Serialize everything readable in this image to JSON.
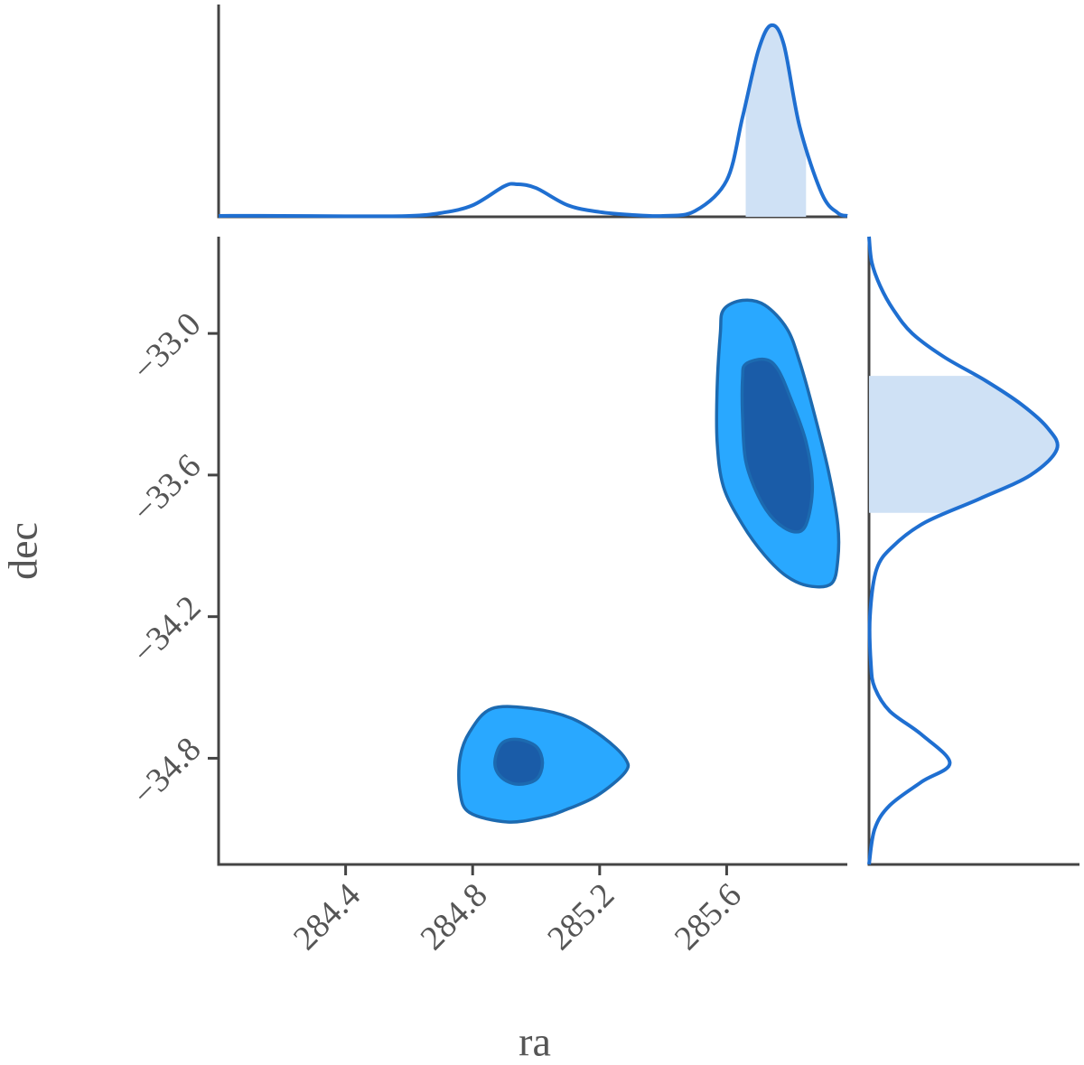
{
  "chart_data": {
    "type": "corner",
    "xlabel": "ra",
    "ylabel": "dec",
    "xlim": [
      284.0,
      285.98
    ],
    "xticks": [
      284.4,
      284.8,
      285.2,
      285.6
    ],
    "ylim": [
      -35.25,
      -32.59
    ],
    "yticks": [
      {
        "value": -33.0,
        "label": "−33.0"
      },
      {
        "value": -33.6,
        "label": "−33.6"
      },
      {
        "value": -34.2,
        "label": "−34.2"
      },
      {
        "value": -34.8,
        "label": "−34.8"
      }
    ],
    "line_color": "#1f6fd1",
    "band_color": "#cfe1f5",
    "contours": [
      {
        "color": "#29a8ff",
        "x": [
          285.59,
          285.65,
          285.72,
          285.79,
          285.83,
          285.87,
          285.92,
          285.95,
          285.95,
          285.93,
          285.86,
          285.79,
          285.72,
          285.65,
          285.59,
          285.57,
          285.57,
          285.58
        ],
        "y": [
          -32.9,
          -32.86,
          -32.88,
          -32.98,
          -33.12,
          -33.31,
          -33.58,
          -33.81,
          -33.96,
          -34.06,
          -34.07,
          -34.03,
          -33.94,
          -33.81,
          -33.65,
          -33.46,
          -33.23,
          -33.0
        ]
      },
      {
        "color": "#1a5ca8",
        "x": [
          285.66,
          285.72,
          285.76,
          285.8,
          285.85,
          285.87,
          285.85,
          285.81,
          285.75,
          285.7,
          285.66,
          285.65,
          285.65
        ],
        "y": [
          -33.13,
          -33.11,
          -33.15,
          -33.27,
          -33.46,
          -33.65,
          -33.81,
          -33.84,
          -33.79,
          -33.69,
          -33.54,
          -33.35,
          -33.19
        ]
      },
      {
        "color": "#29a8ff",
        "x": [
          284.86,
          284.99,
          285.11,
          285.21,
          285.28,
          285.28,
          285.19,
          285.09,
          285.02,
          284.91,
          284.79,
          284.76,
          284.76,
          284.79
        ],
        "y": [
          -34.59,
          -34.59,
          -34.63,
          -34.71,
          -34.8,
          -34.86,
          -34.96,
          -35.02,
          -35.05,
          -35.07,
          -35.03,
          -34.94,
          -34.8,
          -34.69
        ]
      },
      {
        "color": "#1a5ca8",
        "x": [
          284.94,
          285.0,
          285.02,
          285.0,
          284.94,
          284.89,
          284.87,
          284.89
        ],
        "y": [
          -34.72,
          -34.75,
          -34.82,
          -34.89,
          -34.91,
          -34.88,
          -34.82,
          -34.74
        ]
      }
    ],
    "ra_marginal": {
      "ra": [
        284.0,
        284.2,
        284.4,
        284.6,
        284.7,
        284.8,
        284.9,
        284.94,
        285.0,
        285.1,
        285.2,
        285.3,
        285.4,
        285.5,
        285.6,
        285.65,
        285.7,
        285.74,
        285.78,
        285.83,
        285.9,
        285.95,
        285.98
      ],
      "density": [
        0.005,
        0.005,
        0.003,
        0.005,
        0.02,
        0.06,
        0.16,
        0.17,
        0.15,
        0.06,
        0.025,
        0.01,
        0.005,
        0.03,
        0.19,
        0.52,
        0.87,
        1.0,
        0.9,
        0.47,
        0.12,
        0.02,
        0.005
      ]
    },
    "ra_interval": [
      285.66,
      285.85
    ],
    "dec_marginal": {
      "dec": [
        -32.59,
        -32.7,
        -32.8,
        -32.9,
        -33.0,
        -33.1,
        -33.2,
        -33.3,
        -33.4,
        -33.49,
        -33.6,
        -33.7,
        -33.8,
        -33.9,
        -34.0,
        -34.2,
        -34.4,
        -34.5,
        -34.6,
        -34.7,
        -34.82,
        -34.9,
        -35.0,
        -35.1,
        -35.25
      ],
      "density": [
        0.0,
        0.015,
        0.06,
        0.13,
        0.23,
        0.4,
        0.62,
        0.81,
        0.95,
        1.0,
        0.86,
        0.59,
        0.3,
        0.13,
        0.04,
        0.005,
        0.01,
        0.03,
        0.11,
        0.28,
        0.43,
        0.28,
        0.11,
        0.03,
        0.0
      ]
    },
    "dec_interval": [
      -33.18,
      -33.76
    ]
  }
}
